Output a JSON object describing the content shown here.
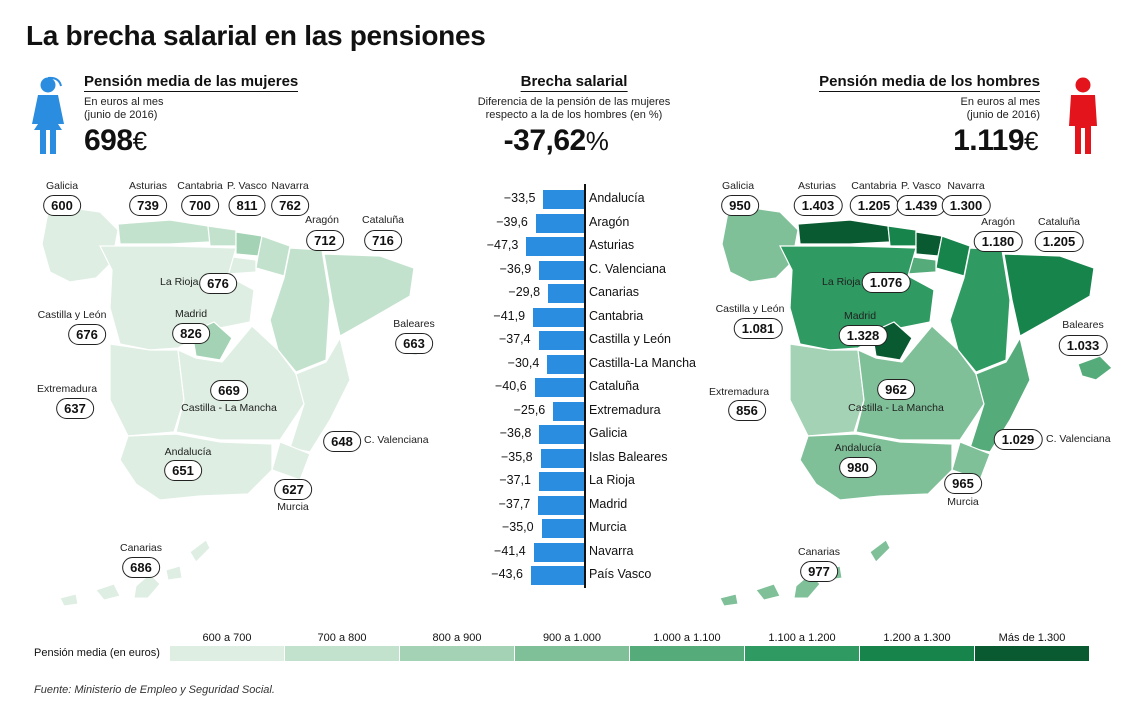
{
  "title": "La brecha salarial en las pensiones",
  "women": {
    "heading": "Pensión media de las mujeres",
    "unit_line1": "En euros al mes",
    "unit_line2": "(junio de 2016)",
    "value": "698",
    "currency": "€",
    "icon": "woman-figure-icon",
    "icon_color": "#2b8ddf"
  },
  "men": {
    "heading": "Pensión media de los hombres",
    "unit_line1": "En euros al mes",
    "unit_line2": "(junio de 2016)",
    "value": "1.119",
    "currency": "€",
    "icon": "man-figure-icon",
    "icon_color": "#e3141b"
  },
  "gap": {
    "heading": "Brecha salarial",
    "desc_line1": "Diferencia de la pensión de las mujeres",
    "desc_line2": "respecto a la de los hombres (en %)",
    "value": "-37,62",
    "unit": "%"
  },
  "chart_data": [
    {
      "type": "bar",
      "orientation": "horizontal",
      "bar_color": "#2b8ddf",
      "categories": [
        "Andalucía",
        "Aragón",
        "Asturias",
        "C. Valenciana",
        "Canarias",
        "Cantabria",
        "Castilla y León",
        "Castilla-La Mancha",
        "Cataluña",
        "Extremadura",
        "Galicia",
        "Islas Baleares",
        "La Rioja",
        "Madrid",
        "Murcia",
        "Navarra",
        "País Vasco"
      ],
      "values": [
        -33.5,
        -39.6,
        -47.3,
        -36.9,
        -29.8,
        -41.9,
        -37.4,
        -30.4,
        -40.6,
        -25.6,
        -36.8,
        -35.8,
        -37.1,
        -37.7,
        -35.0,
        -41.4,
        -43.6
      ],
      "value_labels": [
        "−33,5",
        "−39,6",
        "−47,3",
        "−36,9",
        "−29,8",
        "−41,9",
        "−37,4",
        "−30,4",
        "−40,6",
        "−25,6",
        "−36,8",
        "−35,8",
        "−37,1",
        "−37,7",
        "−35,0",
        "−41,4",
        "−43,6"
      ],
      "xlim": [
        -50,
        0
      ]
    },
    {
      "type": "choropleth",
      "map": "women",
      "regions": [
        {
          "name": "Galicia",
          "value": "600"
        },
        {
          "name": "Asturias",
          "value": "739"
        },
        {
          "name": "Cantabria",
          "value": "700"
        },
        {
          "name": "P. Vasco",
          "value": "811"
        },
        {
          "name": "Navarra",
          "value": "762"
        },
        {
          "name": "Aragón",
          "value": "712"
        },
        {
          "name": "Cataluña",
          "value": "716"
        },
        {
          "name": "La Rioja",
          "value": "676"
        },
        {
          "name": "Castilla y León",
          "value": "676"
        },
        {
          "name": "Madrid",
          "value": "826"
        },
        {
          "name": "Baleares",
          "value": "663"
        },
        {
          "name": "Extremadura",
          "value": "637"
        },
        {
          "name": "Castilla - La Mancha",
          "value": "669"
        },
        {
          "name": "C. Valenciana",
          "value": "648"
        },
        {
          "name": "Andalucía",
          "value": "651"
        },
        {
          "name": "Murcia",
          "value": "627"
        },
        {
          "name": "Canarias",
          "value": "686"
        }
      ]
    },
    {
      "type": "choropleth",
      "map": "men",
      "regions": [
        {
          "name": "Galicia",
          "value": "950"
        },
        {
          "name": "Asturias",
          "value": "1.403"
        },
        {
          "name": "Cantabria",
          "value": "1.205"
        },
        {
          "name": "P. Vasco",
          "value": "1.439"
        },
        {
          "name": "Navarra",
          "value": "1.300"
        },
        {
          "name": "Aragón",
          "value": "1.180"
        },
        {
          "name": "Cataluña",
          "value": "1.205"
        },
        {
          "name": "La Rioja",
          "value": "1.076"
        },
        {
          "name": "Castilla y León",
          "value": "1.081"
        },
        {
          "name": "Madrid",
          "value": "1.328"
        },
        {
          "name": "Baleares",
          "value": "1.033"
        },
        {
          "name": "Extremadura",
          "value": "856"
        },
        {
          "name": "Castilla - La Mancha",
          "value": "962"
        },
        {
          "name": "C. Valenciana",
          "value": "1.029"
        },
        {
          "name": "Andalucía",
          "value": "980"
        },
        {
          "name": "Murcia",
          "value": "965"
        },
        {
          "name": "Canarias",
          "value": "977"
        }
      ]
    }
  ],
  "legend": {
    "title": "Pensión media (en euros)",
    "bins": [
      {
        "label": "600 a 700",
        "color": "#deeee3"
      },
      {
        "label": "700 a 800",
        "color": "#c3e2cd"
      },
      {
        "label": "800 a 900",
        "color": "#a3d2b4"
      },
      {
        "label": "900 a 1.000",
        "color": "#7fc099"
      },
      {
        "label": "1.000 a 1.100",
        "color": "#56ab7a"
      },
      {
        "label": "1.100 a 1.200",
        "color": "#2f9a61"
      },
      {
        "label": "1.200 a 1.300",
        "color": "#16844b"
      },
      {
        "label": "Más de 1.300",
        "color": "#0a5a31"
      }
    ]
  },
  "source": "Fuente: Ministerio de Empleo y Seguridad Social."
}
